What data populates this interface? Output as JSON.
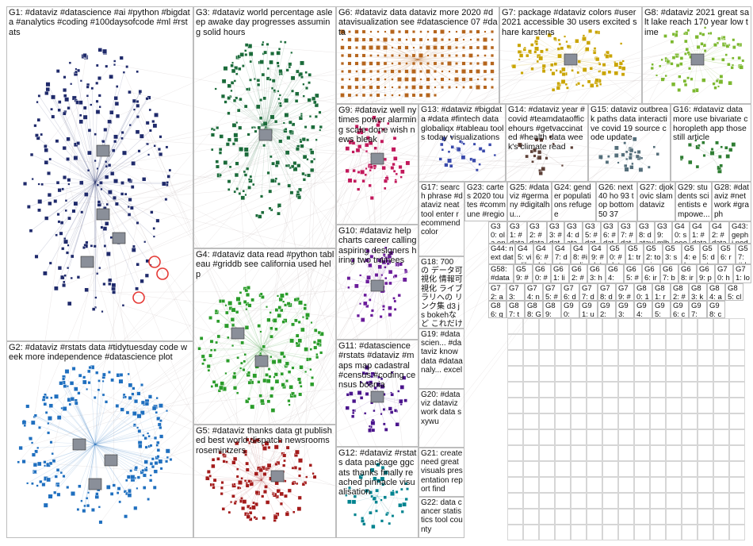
{
  "groups": [
    {
      "id": "G1",
      "label": "G1: #dataviz #datascience #ai #python #bigdata #analytics #coding #100daysofcode #ml #rstats",
      "color": "#1f2a6b"
    },
    {
      "id": "G2",
      "label": "G2: #dataviz #rstats data #tidytuesday code week more independence #datascience plot",
      "color": "#1f6fbf"
    },
    {
      "id": "G3",
      "label": "G3: #dataviz world percentage asleep awake day progresses assuming solid hours",
      "color": "#1b6b3a"
    },
    {
      "id": "G4",
      "label": "G4: #dataviz data read #python tableau #griddb see california used help",
      "color": "#2a9c2a"
    },
    {
      "id": "G5",
      "label": "G5: #dataviz thanks data gt published best world dispatch newsrooms rosemintzers",
      "color": "#a31b1b"
    },
    {
      "id": "G6",
      "label": "G6: #dataviz data dataviz more 2020 #datavisualization see #datascience 07 #data",
      "color": "#b5651d"
    },
    {
      "id": "G7",
      "label": "G7: package #dataviz colors #user2021 accessible 30 users excited share karstens",
      "color": "#c9a400"
    },
    {
      "id": "G8",
      "label": "G8: #dataviz 2021 great salt lake reach 170 year low time",
      "color": "#7cb82f"
    },
    {
      "id": "G9",
      "label": "G9: #dataviz well nytimes power alarming scale done wish news bleak",
      "color": "#c2185b"
    },
    {
      "id": "G10",
      "label": "G10: #dataviz help charts career calling aspiring designers hiring two trainees",
      "color": "#6a1b9a"
    },
    {
      "id": "G11",
      "label": "G11: #datascience #rstats #dataviz #maps map cadastral #census #coding census bosnia",
      "color": "#4a148c"
    },
    {
      "id": "G12",
      "label": "G12: #dataviz #rstats data package ggcats thanks finally reached pinnacle visualisation",
      "color": "#00838f"
    },
    {
      "id": "G13",
      "label": "G13: #dataviz #bigdata #data #fintech data globaliqx #tableau tools today visualizations",
      "color": "#3949ab"
    },
    {
      "id": "G14",
      "label": "G14: #dataviz year #covid #teamdataofficehours #getvaccinated #health data week's climate read",
      "color": "#5d4037"
    },
    {
      "id": "G15",
      "label": "G15: dataviz outbreak paths data interactive covid 19 source code update",
      "color": "#546e7a"
    },
    {
      "id": "G16",
      "label": "G16: #dataviz data more use bivariate choropleth app those still article",
      "color": "#2e7d32"
    },
    {
      "id": "G17",
      "label": "G17: search phrase #dataviz neat tool enter recommend color",
      "color": "#555555"
    },
    {
      "id": "G18",
      "label": "G18: 700 の データ可視化 情報可視化 ライブラリへの リンク集 d3 js bokehなど これだけ網",
      "color": "#555555"
    },
    {
      "id": "G19",
      "label": "G19: #datascien... #dataviz know data #dataanaly... excel",
      "color": "#555555"
    },
    {
      "id": "G20",
      "label": "G20: #dataviz dataviz work data sxywu",
      "color": "#555555"
    },
    {
      "id": "G21",
      "label": "G21: create need great visuals presentation report find",
      "color": "#555555"
    },
    {
      "id": "G22",
      "label": "G22: data cancer statistics tool county",
      "color": "#555555"
    },
    {
      "id": "G23",
      "label": "G23: cartes 2020 toutes #commune #region",
      "color": "#555555"
    },
    {
      "id": "G24",
      "label": "G24: gender populations refugee",
      "color": "#555555"
    },
    {
      "id": "G25",
      "label": "G25: #dataviz #germany #digitalhu...",
      "color": "#555555"
    },
    {
      "id": "G26",
      "label": "G26: next 40 ho 93 top bottom 50 37",
      "color": "#555555"
    },
    {
      "id": "G27",
      "label": "G27: djokovic slam dataviz",
      "color": "#555555"
    },
    {
      "id": "G28",
      "label": "G28: #dataviz #network #graph",
      "color": "#555555"
    },
    {
      "id": "G29",
      "label": "G29: students scientists empowe...",
      "color": "#555555"
    }
  ],
  "small_groups": [
    "G30: ola one padill engla",
    "G31: #data #arogi #b3d",
    "G32: #data #scico usgs_",
    "G33: #data #map routes",
    "G34: data fonte",
    "G35: #data #gis esri",
    "G36: #datavis #learni",
    "G37: #data #foda",
    "G38: dataviz ngedfr",
    "G39: mlb #data",
    "G40: soooo excite",
    "G41: #datav chart",
    "G42: #datav ons",
    "G43: gephi nodex",
    "G44: next datav",
    "G45: vizlib #qlik",
    "G46: #data #dat",
    "G47: data finis",
    "G48: #indi #inde",
    "G49: #data #data",
    "G50: #dat #dat",
    "G51: tren one",
    "G52: tonig",
    "G53: see",
    "G54: ehrs",
    "G55: data",
    "G56: rese",
    "G57: #dat",
    "G58: #data",
    "G59: #dat",
    "G60: #fran",
    "G61: lipca",
    "G62: #dat",
    "G63: hey",
    "G64: ...",
    "G65: #dat",
    "G66: iron",
    "G67: benf",
    "G68: irony",
    "G69: phili",
    "G70: hug",
    "G71: love",
    "G72: am",
    "G73: ...",
    "G74: net",
    "G75: #ai",
    "G76: dat",
    "G77: dat",
    "G78: dat",
    "G79: #dat",
    "G80: 17",
    "G81: real",
    "G82: #di",
    "G83: key",
    "G84: atte",
    "G85: clus",
    "G86: gg",
    "G87: ther",
    "G88: G",
    "G89: ...",
    "G90: ...",
    "G91: uni",
    "G92: ...",
    "G93: mal",
    "G94: ...",
    "G95: ...",
    "G96: cov",
    "G97: ...",
    "G98: cov"
  ]
}
